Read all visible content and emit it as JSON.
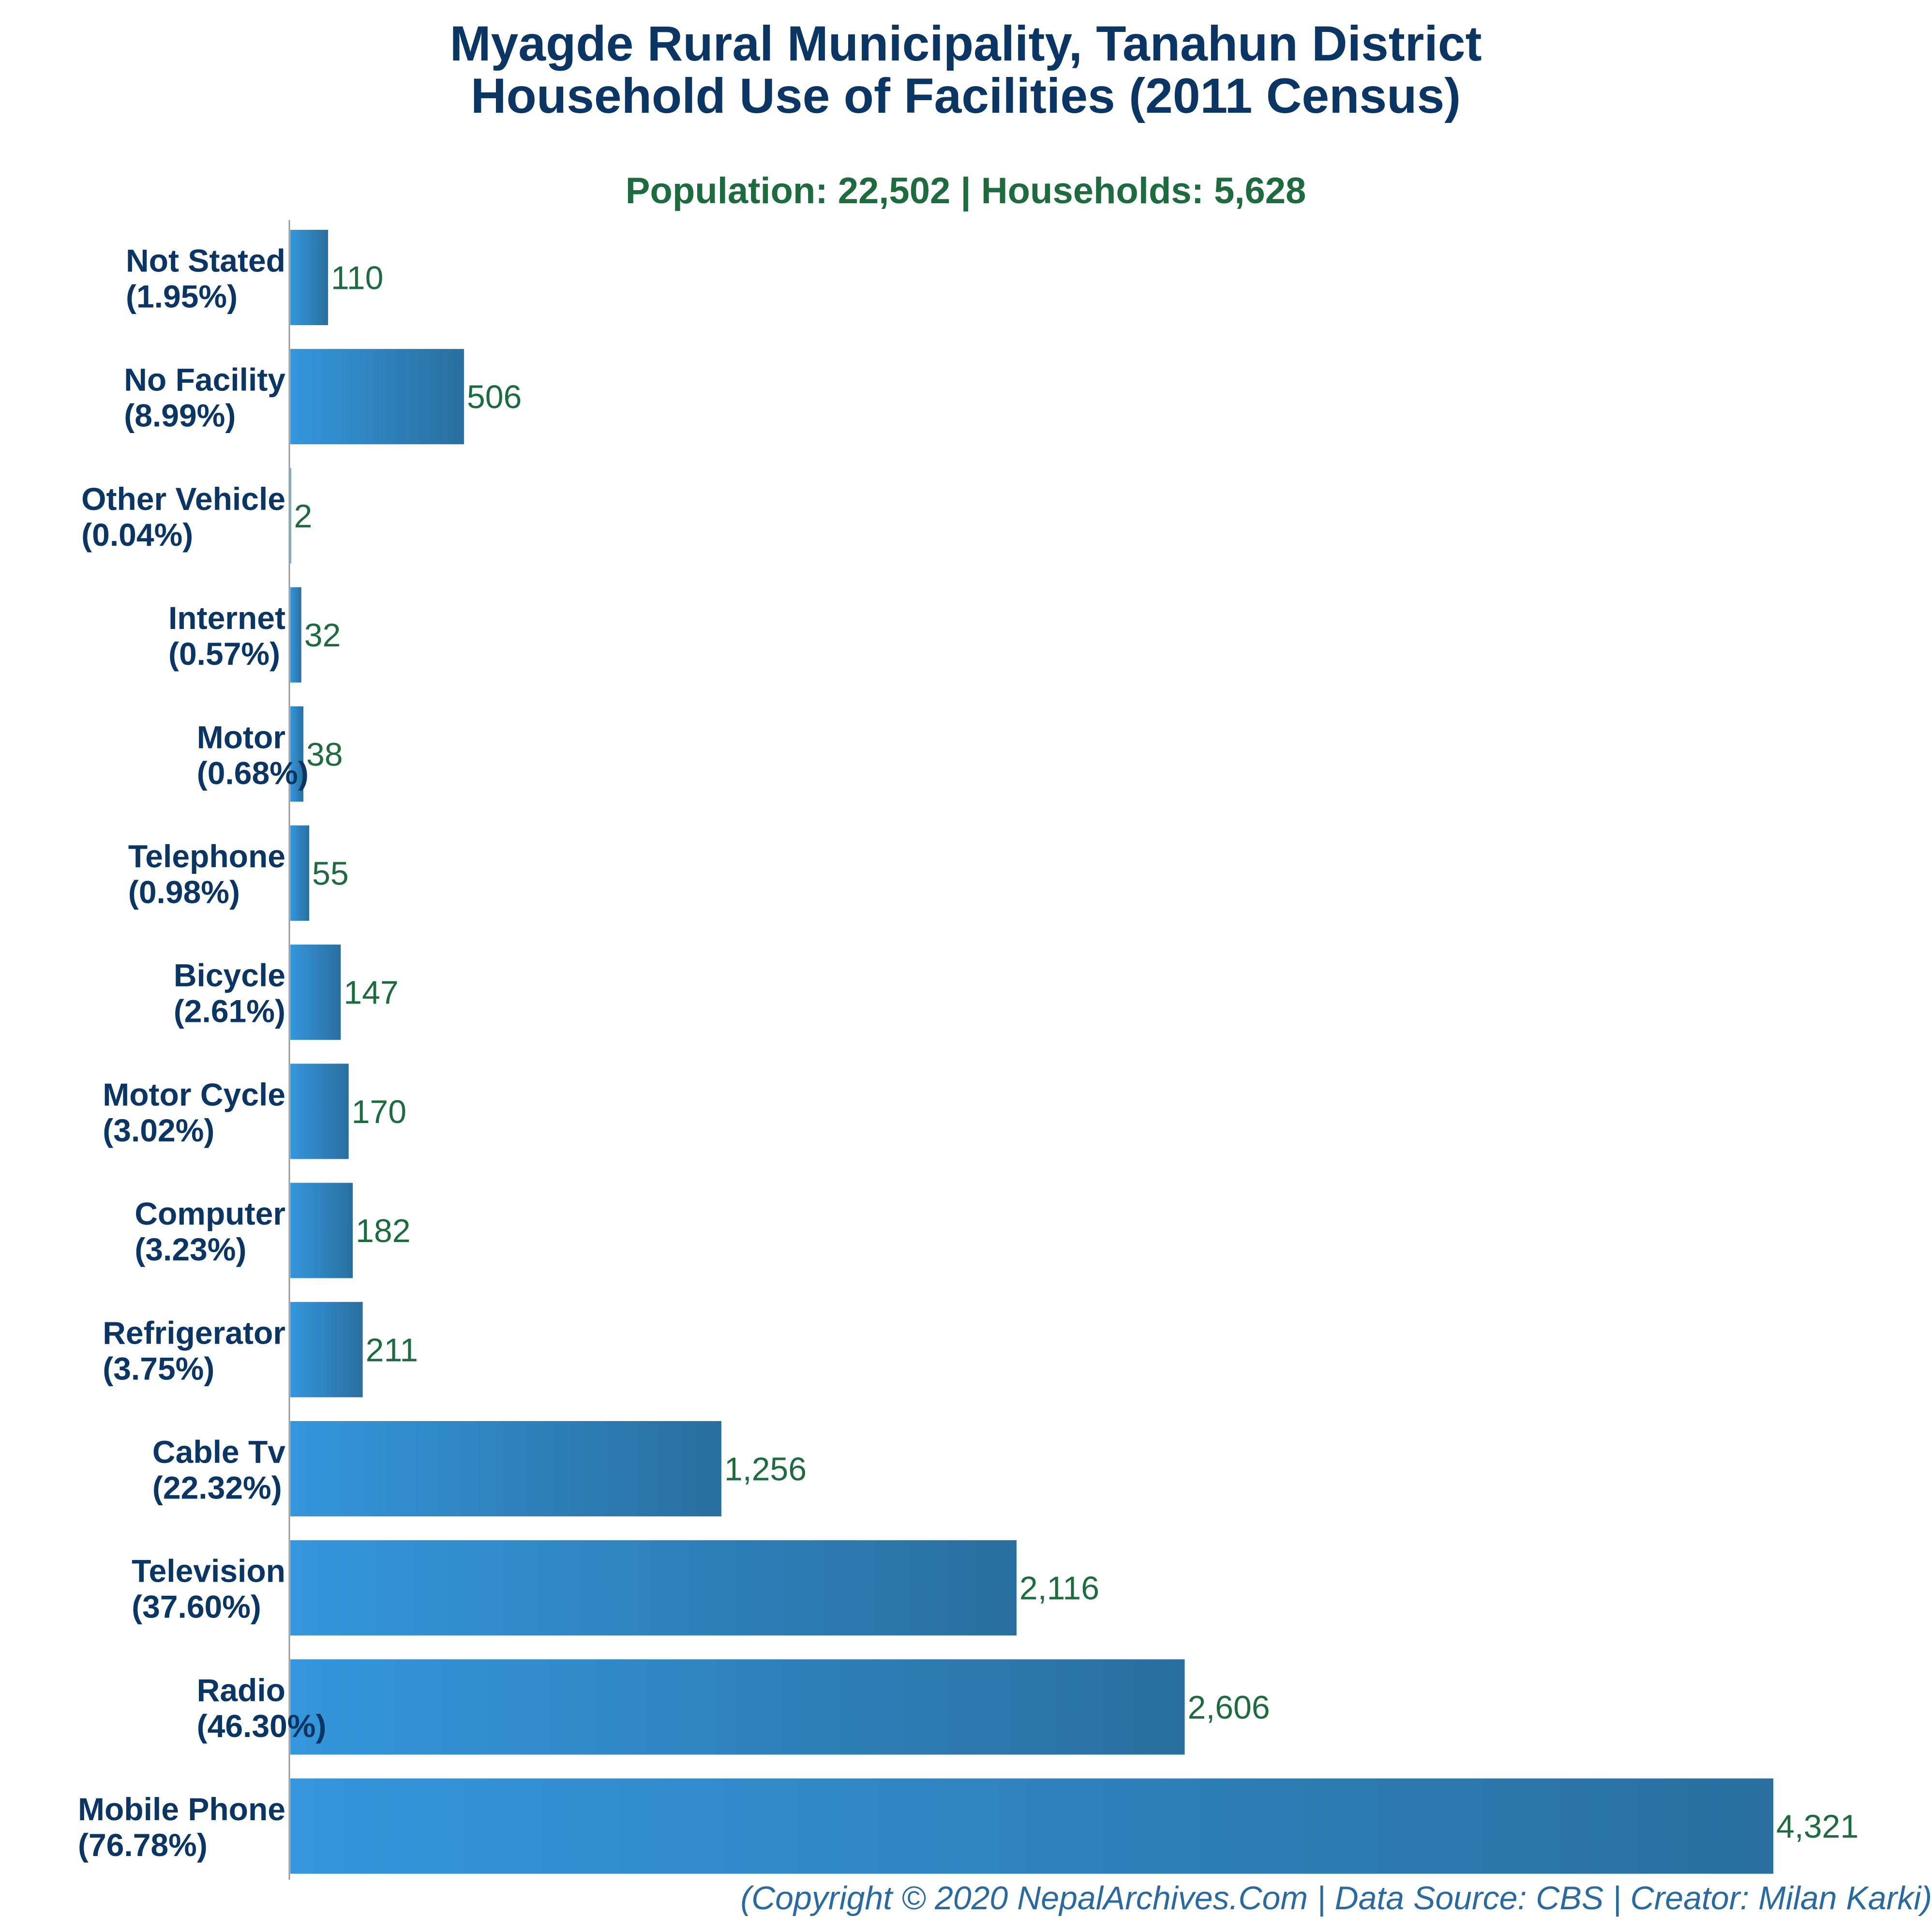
{
  "chart_data": {
    "type": "bar",
    "orientation": "horizontal",
    "title_line1": "Myagde Rural Municipality, Tanahun District",
    "title_line2": "Household Use of Facilities (2011 Census)",
    "subtitle": "Population: 22,502 | Households: 5,628",
    "categories": [
      "Not Stated",
      "No Facility",
      "Other Vehicle",
      "Internet",
      "Motor",
      "Telephone",
      "Bicycle",
      "Motor Cycle",
      "Computer",
      "Refrigerator",
      "Cable Tv",
      "Television",
      "Radio",
      "Mobile Phone"
    ],
    "percents": [
      "(1.95%)",
      "(8.99%)",
      "(0.04%)",
      "(0.57%)",
      "(0.68%)",
      "(0.98%)",
      "(2.61%)",
      "(3.02%)",
      "(3.23%)",
      "(3.75%)",
      "(22.32%)",
      "(37.60%)",
      "(46.30%)",
      "(76.78%)"
    ],
    "values": [
      110,
      506,
      2,
      32,
      38,
      55,
      147,
      170,
      182,
      211,
      1256,
      2116,
      2606,
      4321
    ],
    "value_labels": [
      "110",
      "506",
      "2",
      "32",
      "38",
      "55",
      "147",
      "170",
      "182",
      "211",
      "1,256",
      "2,116",
      "2,606",
      "4,321"
    ],
    "xlim": [
      0,
      4321
    ],
    "grid": false,
    "colors": {
      "bar_start": "#3596dc",
      "bar_end": "#2a6f9f",
      "title": "#0b3563",
      "subtitle": "#1d6b3f",
      "value_label": "#1d6b3f",
      "credit": "#2b6a9e"
    }
  },
  "footer": {
    "credit": "(Copyright © 2020 NepalArchives.Com | Data Source: CBS | Creator: Milan Karki)"
  }
}
